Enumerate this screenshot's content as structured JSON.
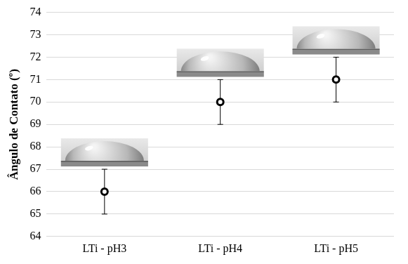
{
  "chart_data": {
    "type": "scatter",
    "y_label": "Ângulo de Contato (º)",
    "categories": [
      "LTi - pH3",
      "LTi - pH4",
      "LTi - pH5"
    ],
    "values": [
      66,
      70,
      71
    ],
    "errors": [
      1,
      1,
      1
    ],
    "color": "#000000",
    "marker": "circle",
    "ylim": [
      64,
      74
    ],
    "yticks": [
      64,
      65,
      66,
      67,
      68,
      69,
      70,
      71,
      72,
      73,
      74
    ],
    "grid": true
  }
}
